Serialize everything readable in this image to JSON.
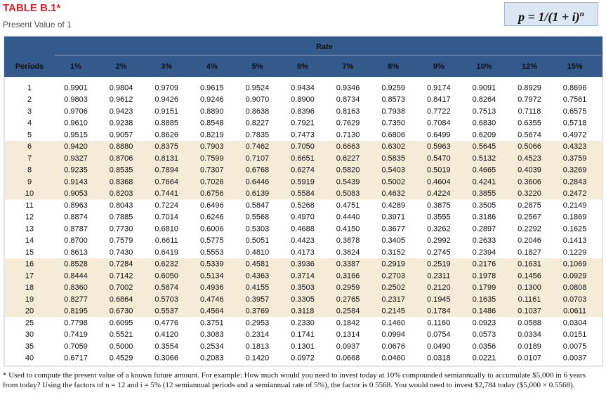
{
  "header": {
    "title": "TABLE B.1*",
    "subtitle": "Present Value of 1",
    "formula": "p = 1/(1 + i)",
    "formula_exponent": "n"
  },
  "table": {
    "group_label": "Rate",
    "columns": [
      "Periods",
      "1%",
      "2%",
      "3%",
      "4%",
      "5%",
      "6%",
      "7%",
      "8%",
      "9%",
      "10%",
      "12%",
      "15%"
    ],
    "rows": [
      [
        "1",
        "0.9901",
        "0.9804",
        "0.9709",
        "0.9615",
        "0.9524",
        "0.9434",
        "0.9346",
        "0.9259",
        "0.9174",
        "0.9091",
        "0.8929",
        "0.8696"
      ],
      [
        "2",
        "0.9803",
        "0.9612",
        "0.9426",
        "0.9246",
        "0.9070",
        "0.8900",
        "0.8734",
        "0.8573",
        "0.8417",
        "0.8264",
        "0.7972",
        "0.7561"
      ],
      [
        "3",
        "0.9706",
        "0.9423",
        "0.9151",
        "0.8890",
        "0.8638",
        "0.8396",
        "0.8163",
        "0.7938",
        "0.7722",
        "0.7513",
        "0.7118",
        "0.6575"
      ],
      [
        "4",
        "0.9610",
        "0.9238",
        "0.8885",
        "0.8548",
        "0.8227",
        "0.7921",
        "0.7629",
        "0.7350",
        "0.7084",
        "0.6830",
        "0.6355",
        "0.5718"
      ],
      [
        "5",
        "0.9515",
        "0.9057",
        "0.8626",
        "0.8219",
        "0.7835",
        "0.7473",
        "0.7130",
        "0.6806",
        "0.6499",
        "0.6209",
        "0.5674",
        "0.4972"
      ],
      [
        "6",
        "0.9420",
        "0.8880",
        "0.8375",
        "0.7903",
        "0.7462",
        "0.7050",
        "0.6663",
        "0.6302",
        "0.5963",
        "0.5645",
        "0.5066",
        "0.4323"
      ],
      [
        "7",
        "0.9327",
        "0.8706",
        "0.8131",
        "0.7599",
        "0.7107",
        "0.6651",
        "0.6227",
        "0.5835",
        "0.5470",
        "0.5132",
        "0.4523",
        "0.3759"
      ],
      [
        "8",
        "0.9235",
        "0.8535",
        "0.7894",
        "0.7307",
        "0.6768",
        "0.6274",
        "0.5820",
        "0.5403",
        "0.5019",
        "0.4665",
        "0.4039",
        "0.3269"
      ],
      [
        "9",
        "0.9143",
        "0.8368",
        "0.7664",
        "0.7026",
        "0.6446",
        "0.5919",
        "0.5439",
        "0.5002",
        "0.4604",
        "0.4241",
        "0.3606",
        "0.2843"
      ],
      [
        "10",
        "0.9053",
        "0.8203",
        "0.7441",
        "0.6756",
        "0.6139",
        "0.5584",
        "0.5083",
        "0.4632",
        "0.4224",
        "0.3855",
        "0.3220",
        "0.2472"
      ],
      [
        "11",
        "0.8963",
        "0.8043",
        "0.7224",
        "0.6496",
        "0.5847",
        "0.5268",
        "0.4751",
        "0.4289",
        "0.3875",
        "0.3505",
        "0.2875",
        "0.2149"
      ],
      [
        "12",
        "0.8874",
        "0.7885",
        "0.7014",
        "0.6246",
        "0.5568",
        "0.4970",
        "0.4440",
        "0.3971",
        "0.3555",
        "0.3186",
        "0.2567",
        "0.1869"
      ],
      [
        "13",
        "0.8787",
        "0.7730",
        "0.6810",
        "0.6006",
        "0.5303",
        "0.4688",
        "0.4150",
        "0.3677",
        "0.3262",
        "0.2897",
        "0.2292",
        "0.1625"
      ],
      [
        "14",
        "0.8700",
        "0.7579",
        "0.6611",
        "0.5775",
        "0.5051",
        "0.4423",
        "0.3878",
        "0.3405",
        "0.2992",
        "0.2633",
        "0.2046",
        "0.1413"
      ],
      [
        "15",
        "0.8613",
        "0.7430",
        "0.6419",
        "0.5553",
        "0.4810",
        "0.4173",
        "0.3624",
        "0.3152",
        "0.2745",
        "0.2394",
        "0.1827",
        "0.1229"
      ],
      [
        "16",
        "0.8528",
        "0.7284",
        "0.6232",
        "0.5339",
        "0.4581",
        "0.3936",
        "0.3387",
        "0.2919",
        "0.2519",
        "0.2176",
        "0.1631",
        "0.1069"
      ],
      [
        "17",
        "0.8444",
        "0.7142",
        "0.6050",
        "0.5134",
        "0.4363",
        "0.3714",
        "0.3166",
        "0.2703",
        "0.2311",
        "0.1978",
        "0.1456",
        "0.0929"
      ],
      [
        "18",
        "0.8360",
        "0.7002",
        "0.5874",
        "0.4936",
        "0.4155",
        "0.3503",
        "0.2959",
        "0.2502",
        "0.2120",
        "0.1799",
        "0.1300",
        "0.0808"
      ],
      [
        "19",
        "0.8277",
        "0.6864",
        "0.5703",
        "0.4746",
        "0.3957",
        "0.3305",
        "0.2765",
        "0.2317",
        "0.1945",
        "0.1635",
        "0.1161",
        "0.0703"
      ],
      [
        "20",
        "0.8195",
        "0.6730",
        "0.5537",
        "0.4564",
        "0.3769",
        "0.3118",
        "0.2584",
        "0.2145",
        "0.1784",
        "0.1486",
        "0.1037",
        "0.0611"
      ],
      [
        "25",
        "0.7798",
        "0.6095",
        "0.4776",
        "0.3751",
        "0.2953",
        "0.2330",
        "0.1842",
        "0.1460",
        "0.1160",
        "0.0923",
        "0.0588",
        "0.0304"
      ],
      [
        "30",
        "0.7419",
        "0.5521",
        "0.4120",
        "0.3083",
        "0.2314",
        "0.1741",
        "0.1314",
        "0.0994",
        "0.0754",
        "0.0573",
        "0.0334",
        "0.0151"
      ],
      [
        "35",
        "0.7059",
        "0.5000",
        "0.3554",
        "0.2534",
        "0.1813",
        "0.1301",
        "0.0937",
        "0.0676",
        "0.0490",
        "0.0356",
        "0.0189",
        "0.0075"
      ],
      [
        "40",
        "0.6717",
        "0.4529",
        "0.3066",
        "0.2083",
        "0.1420",
        "0.0972",
        "0.0668",
        "0.0460",
        "0.0318",
        "0.0221",
        "0.0107",
        "0.0037"
      ]
    ]
  },
  "footnote": "* Used to compute the present value of a known future amount. For example: How much would you need to invest today at 10% compounded semiannually to accumulate $5,000 in 6 years from today? Using the factors of n = 12 and i = 5% (12 semiannual periods and a semiannual rate of 5%), the factor is 0.5568. You would need to invest $2,784 today ($5,000 × 0.5568)."
}
